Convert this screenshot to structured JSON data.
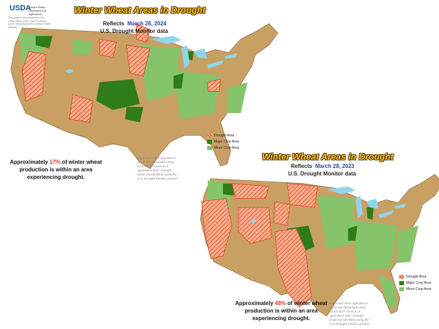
{
  "logo": {
    "mark": "USDA",
    "agency": "United States Department of Agriculture",
    "note": "This product was prepared by the USDA Office of the Chief Economist (OCE) World Agricultural Outlook Board (WAOB)"
  },
  "maps": [
    {
      "title": "Winter Wheat Areas in Drought",
      "reflects": "Reflects",
      "date": "March 26, 2024",
      "source": "U.S. Drought Monitor data",
      "legend": [
        "Drought Area",
        "Major Crop Area",
        "Minor Crop Area"
      ],
      "note": "Major and minor agricultural areas are delineated using NASS 2017 Census of Agriculture data. Drought areas are identified using the U.S. Drought Monitor product.",
      "summary": {
        "before": "Approximately ",
        "share": "17%",
        "after": " of winter wheat production is within an area experiencing drought."
      }
    },
    {
      "title": "Winter Wheat Areas in Drought",
      "reflects": "Reflects",
      "date": "March 28, 2023",
      "source": "U.S. Drought Monitor data",
      "legend": [
        "Drought Area",
        "Major Crop Area",
        "Minor Crop Area"
      ],
      "note": "Major and minor agricultural areas are delineated using NASS 2017 Census of Agriculture data. Drought areas are identified using the U.S. Drought Monitor product.",
      "summary": {
        "before": "Approximately ",
        "share": "48%",
        "after": " of winter wheat production is within an area experiencing drought."
      }
    }
  ]
}
